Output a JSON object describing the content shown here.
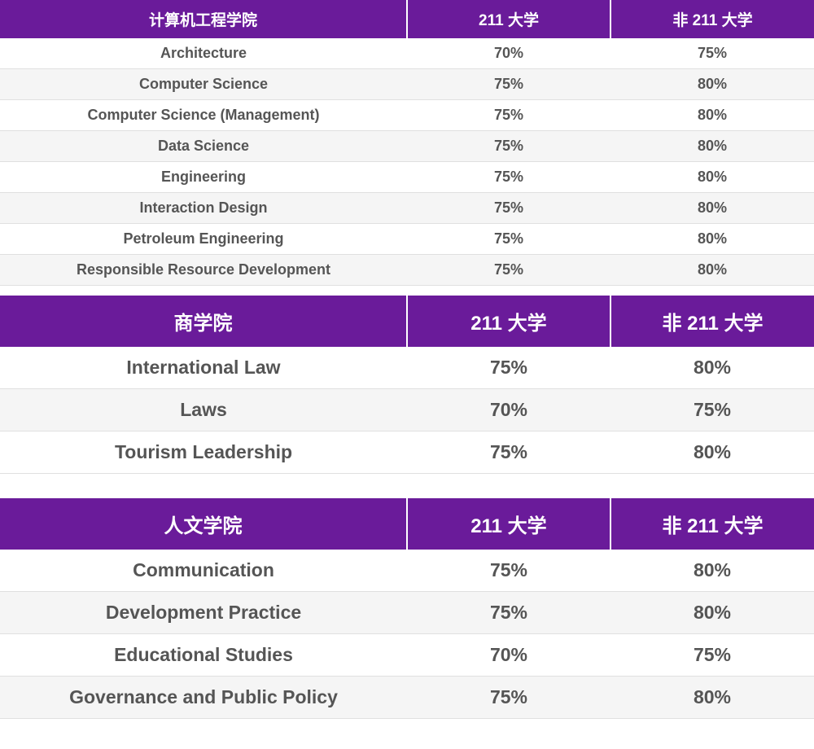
{
  "colors": {
    "header_bg": "#6a1b9a",
    "header_text": "#ffffff",
    "row_even_bg": "#f5f5f5",
    "row_odd_bg": "#ffffff",
    "cell_text": "#555555",
    "border": "#e0e0e0"
  },
  "tables": [
    {
      "id": "cs-engineering",
      "className": "t1",
      "headers": [
        "计算机工程学院",
        "211 大学",
        "非 211 大学"
      ],
      "rows": [
        [
          "Architecture",
          "70%",
          "75%"
        ],
        [
          "Computer Science",
          "75%",
          "80%"
        ],
        [
          "Computer Science (Management)",
          "75%",
          "80%"
        ],
        [
          "Data Science",
          "75%",
          "80%"
        ],
        [
          "Engineering",
          "75%",
          "80%"
        ],
        [
          "Interaction Design",
          "75%",
          "80%"
        ],
        [
          "Petroleum Engineering",
          "75%",
          "80%"
        ],
        [
          "Responsible Resource Development",
          "75%",
          "80%"
        ]
      ],
      "gap_after": "small-gap"
    },
    {
      "id": "business-school",
      "className": "t2",
      "headers": [
        "商学院",
        "211 大学",
        "非 211 大学"
      ],
      "rows": [
        [
          "International Law",
          "75%",
          "80%"
        ],
        [
          "Laws",
          "70%",
          "75%"
        ],
        [
          "Tourism Leadership",
          "75%",
          "80%"
        ]
      ],
      "gap_after": "section-gap"
    },
    {
      "id": "humanities",
      "className": "t3",
      "headers": [
        "人文学院",
        "211 大学",
        "非 211 大学"
      ],
      "rows": [
        [
          "Communication",
          "75%",
          "80%"
        ],
        [
          "Development Practice",
          "75%",
          "80%"
        ],
        [
          "Educational Studies",
          "70%",
          "75%"
        ],
        [
          "Governance and Public Policy",
          "75%",
          "80%"
        ]
      ],
      "gap_after": null
    }
  ]
}
